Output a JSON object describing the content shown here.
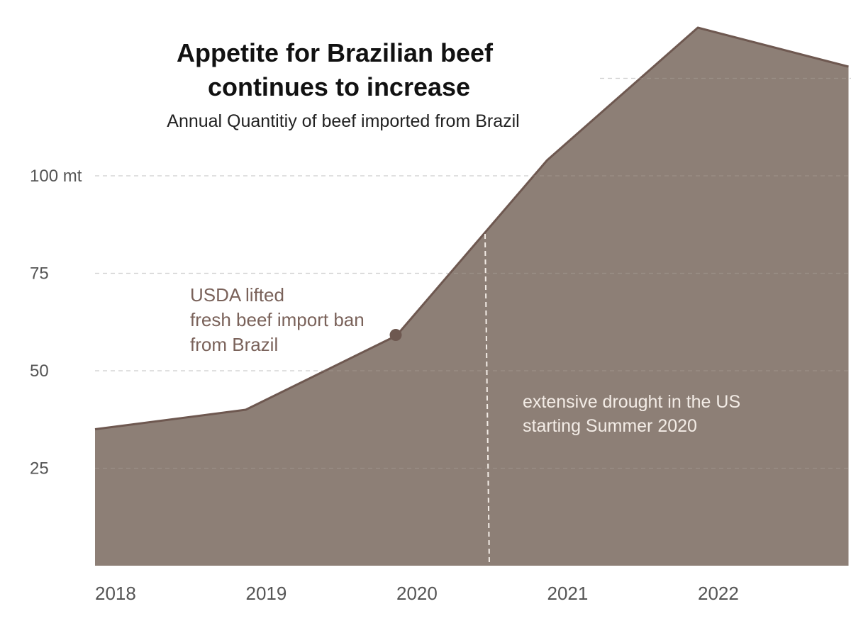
{
  "chart_data": {
    "type": "area",
    "title_lines": [
      "Appetite for Brazilian beef",
      "continues to increase"
    ],
    "subtitle": "Annual Quantitiy of beef imported from Brazil",
    "xlabel": "",
    "ylabel": "",
    "x": [
      2018,
      2019,
      2020,
      2021,
      2022,
      2023
    ],
    "values": [
      35,
      40,
      59,
      104,
      138,
      128
    ],
    "ylim": [
      0,
      138
    ],
    "yticks": [
      {
        "value": 25,
        "label": "25"
      },
      {
        "value": 50,
        "label": "50"
      },
      {
        "value": 75,
        "label": "75"
      },
      {
        "value": 100,
        "label": "100 mt"
      },
      {
        "value": 125,
        "label": ""
      }
    ],
    "xticks": [
      "2018",
      "2019",
      "2020",
      "2021",
      "2022"
    ],
    "grid": true,
    "annotations": [
      {
        "id": "usda",
        "x": 2020,
        "y": 59,
        "lines": [
          "USDA lifted",
          "fresh beef import ban",
          "from Brazil"
        ],
        "marker": "dot"
      },
      {
        "id": "drought",
        "x": 2020.6,
        "lines": [
          "extensive drought in the US",
          "starting Summer 2020"
        ],
        "marker": "vertical-dashed-line"
      }
    ],
    "colors": {
      "fill": "#8d7f76",
      "line": "#6e5850",
      "grid": "#c8c8c8",
      "annotation_text": "#7a625a",
      "drought_text": "#f3ece6"
    }
  }
}
